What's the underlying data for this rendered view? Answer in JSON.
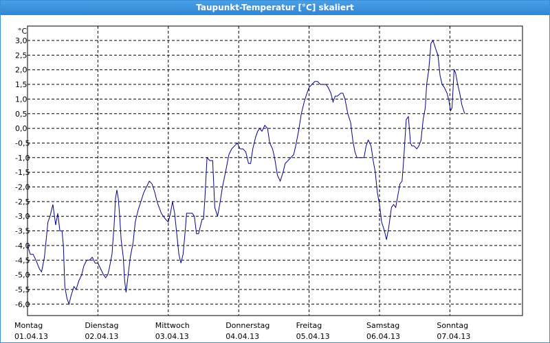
{
  "window": {
    "title": "Taupunkt-Temperatur [°C] skaliert"
  },
  "chart_data": {
    "type": "line",
    "title": "Taupunkt-Temperatur [°C] skaliert",
    "ylabel": "°C",
    "ylim": [
      -6.6,
      3.4
    ],
    "yticks": [
      "3,0",
      "2,5",
      "2,0",
      "1,5",
      "1,0",
      "0,5",
      "0,0",
      "-0,5",
      "-1,0",
      "-1,5",
      "-2,0",
      "-2,5",
      "-3,0",
      "-3,5",
      "-4,0",
      "-4,5",
      "-5,0",
      "-5,5",
      "-6,0"
    ],
    "ytick_values": [
      3.0,
      2.5,
      2.0,
      1.5,
      1.0,
      0.5,
      0.0,
      -0.5,
      -1.0,
      -1.5,
      -2.0,
      -2.5,
      -3.0,
      -3.5,
      -4.0,
      -4.5,
      -5.0,
      -5.5,
      -6.0
    ],
    "xlim": [
      0,
      7.0
    ],
    "xticks": [
      {
        "day": "Montag",
        "date": "01.04.13"
      },
      {
        "day": "Dienstag",
        "date": "02.04.13"
      },
      {
        "day": "Mittwoch",
        "date": "03.04.13"
      },
      {
        "day": "Donnerstag",
        "date": "04.04.13"
      },
      {
        "day": "Freitag",
        "date": "05.04.13"
      },
      {
        "day": "Samstag",
        "date": "06.04.13"
      },
      {
        "day": "Sonntag",
        "date": "07.04.13"
      }
    ],
    "grid": true,
    "series": [
      {
        "color": "#00008b",
        "points": [
          [
            0.0,
            -4.0
          ],
          [
            0.04,
            -4.3
          ],
          [
            0.08,
            -4.3
          ],
          [
            0.12,
            -4.5
          ],
          [
            0.17,
            -4.8
          ],
          [
            0.2,
            -4.9
          ],
          [
            0.24,
            -4.4
          ],
          [
            0.27,
            -3.7
          ],
          [
            0.29,
            -3.2
          ],
          [
            0.32,
            -3.0
          ],
          [
            0.36,
            -2.6
          ],
          [
            0.4,
            -3.3
          ],
          [
            0.43,
            -2.9
          ],
          [
            0.46,
            -3.5
          ],
          [
            0.49,
            -3.5
          ],
          [
            0.51,
            -4.0
          ],
          [
            0.53,
            -5.4
          ],
          [
            0.56,
            -5.8
          ],
          [
            0.59,
            -6.0
          ],
          [
            0.62,
            -5.7
          ],
          [
            0.66,
            -5.4
          ],
          [
            0.69,
            -5.5
          ],
          [
            0.73,
            -5.2
          ],
          [
            0.77,
            -5.0
          ],
          [
            0.8,
            -4.7
          ],
          [
            0.84,
            -4.5
          ],
          [
            0.88,
            -4.5
          ],
          [
            0.92,
            -4.4
          ],
          [
            0.96,
            -4.6
          ],
          [
            1.0,
            -4.6
          ],
          [
            1.04,
            -4.8
          ],
          [
            1.08,
            -5.0
          ],
          [
            1.11,
            -5.1
          ],
          [
            1.14,
            -5.0
          ],
          [
            1.16,
            -4.8
          ],
          [
            1.2,
            -4.3
          ],
          [
            1.23,
            -3.3
          ],
          [
            1.25,
            -2.4
          ],
          [
            1.27,
            -2.1
          ],
          [
            1.29,
            -2.4
          ],
          [
            1.31,
            -3.0
          ],
          [
            1.33,
            -3.8
          ],
          [
            1.36,
            -4.4
          ],
          [
            1.38,
            -5.2
          ],
          [
            1.4,
            -5.6
          ],
          [
            1.43,
            -5.0
          ],
          [
            1.46,
            -4.4
          ],
          [
            1.5,
            -3.9
          ],
          [
            1.53,
            -3.2
          ],
          [
            1.57,
            -2.8
          ],
          [
            1.61,
            -2.5
          ],
          [
            1.65,
            -2.2
          ],
          [
            1.69,
            -2.0
          ],
          [
            1.73,
            -1.8
          ],
          [
            1.77,
            -1.9
          ],
          [
            1.81,
            -2.2
          ],
          [
            1.84,
            -2.5
          ],
          [
            1.87,
            -2.7
          ],
          [
            1.9,
            -2.9
          ],
          [
            1.93,
            -3.0
          ],
          [
            1.96,
            -3.1
          ],
          [
            2.0,
            -3.2
          ],
          [
            2.03,
            -2.9
          ],
          [
            2.06,
            -2.5
          ],
          [
            2.09,
            -2.9
          ],
          [
            2.12,
            -3.6
          ],
          [
            2.15,
            -4.3
          ],
          [
            2.18,
            -4.6
          ],
          [
            2.21,
            -4.3
          ],
          [
            2.24,
            -3.5
          ],
          [
            2.26,
            -2.9
          ],
          [
            2.29,
            -2.9
          ],
          [
            2.34,
            -2.9
          ],
          [
            2.37,
            -3.0
          ],
          [
            2.4,
            -3.6
          ],
          [
            2.43,
            -3.6
          ],
          [
            2.46,
            -3.3
          ],
          [
            2.48,
            -3.1
          ],
          [
            2.5,
            -3.1
          ],
          [
            2.52,
            -2.4
          ],
          [
            2.55,
            -1.0
          ],
          [
            2.59,
            -1.1
          ],
          [
            2.63,
            -1.1
          ],
          [
            2.66,
            -2.7
          ],
          [
            2.7,
            -3.0
          ],
          [
            2.73,
            -2.6
          ],
          [
            2.77,
            -2.0
          ],
          [
            2.82,
            -1.4
          ],
          [
            2.86,
            -0.9
          ],
          [
            2.9,
            -0.7
          ],
          [
            2.94,
            -0.6
          ],
          [
            2.98,
            -0.5
          ],
          [
            3.02,
            -0.7
          ],
          [
            3.06,
            -0.7
          ],
          [
            3.1,
            -0.8
          ],
          [
            3.14,
            -1.2
          ],
          [
            3.17,
            -1.2
          ],
          [
            3.2,
            -0.7
          ],
          [
            3.24,
            -0.3
          ],
          [
            3.27,
            -0.1
          ],
          [
            3.3,
            0.0
          ],
          [
            3.33,
            -0.1
          ],
          [
            3.37,
            0.1
          ],
          [
            3.41,
            0.0
          ],
          [
            3.44,
            -0.5
          ],
          [
            3.48,
            -0.7
          ],
          [
            3.51,
            -1.0
          ],
          [
            3.55,
            -1.6
          ],
          [
            3.59,
            -1.8
          ],
          [
            3.63,
            -1.5
          ],
          [
            3.66,
            -1.2
          ],
          [
            3.7,
            -1.1
          ],
          [
            3.74,
            -1.0
          ],
          [
            3.78,
            -0.9
          ],
          [
            3.81,
            -0.6
          ],
          [
            3.85,
            -0.1
          ],
          [
            3.89,
            0.5
          ],
          [
            3.93,
            0.9
          ],
          [
            3.97,
            1.2
          ],
          [
            4.0,
            1.4
          ],
          [
            4.04,
            1.5
          ],
          [
            4.08,
            1.6
          ],
          [
            4.12,
            1.6
          ],
          [
            4.16,
            1.5
          ],
          [
            4.2,
            1.5
          ],
          [
            4.24,
            1.5
          ],
          [
            4.27,
            1.4
          ],
          [
            4.31,
            1.2
          ],
          [
            4.34,
            0.9
          ],
          [
            4.37,
            1.1
          ],
          [
            4.4,
            1.1
          ],
          [
            4.45,
            1.2
          ],
          [
            4.48,
            1.2
          ],
          [
            4.51,
            1.0
          ],
          [
            4.55,
            0.5
          ],
          [
            4.59,
            0.2
          ],
          [
            4.62,
            -0.4
          ],
          [
            4.65,
            -0.8
          ],
          [
            4.68,
            -1.0
          ],
          [
            4.71,
            -1.0
          ],
          [
            4.75,
            -1.0
          ],
          [
            4.78,
            -1.0
          ],
          [
            4.81,
            -0.6
          ],
          [
            4.84,
            -0.4
          ],
          [
            4.88,
            -0.6
          ],
          [
            4.91,
            -1.1
          ],
          [
            4.94,
            -1.5
          ],
          [
            4.97,
            -2.2
          ],
          [
            5.0,
            -2.6
          ],
          [
            5.03,
            -3.2
          ],
          [
            5.07,
            -3.5
          ],
          [
            5.1,
            -3.8
          ],
          [
            5.13,
            -3.4
          ],
          [
            5.17,
            -2.7
          ],
          [
            5.2,
            -2.6
          ],
          [
            5.23,
            -2.7
          ],
          [
            5.26,
            -2.3
          ],
          [
            5.29,
            -1.9
          ],
          [
            5.32,
            -1.8
          ],
          [
            5.34,
            -1.2
          ],
          [
            5.38,
            0.3
          ],
          [
            5.41,
            0.4
          ],
          [
            5.44,
            -0.5
          ],
          [
            5.46,
            -0.6
          ],
          [
            5.49,
            -0.6
          ],
          [
            5.53,
            -0.7
          ],
          [
            5.56,
            -0.6
          ],
          [
            5.59,
            -0.4
          ],
          [
            5.62,
            0.3
          ],
          [
            5.65,
            0.7
          ],
          [
            5.67,
            1.5
          ],
          [
            5.7,
            2.0
          ],
          [
            5.73,
            2.9
          ],
          [
            5.76,
            3.0
          ],
          [
            5.8,
            2.7
          ],
          [
            5.83,
            2.5
          ],
          [
            5.86,
            1.8
          ],
          [
            5.89,
            1.5
          ],
          [
            5.92,
            1.4
          ],
          [
            5.96,
            1.2
          ],
          [
            5.99,
            0.9
          ],
          [
            6.01,
            0.6
          ],
          [
            6.03,
            0.7
          ],
          [
            6.06,
            2.0
          ],
          [
            6.08,
            1.9
          ],
          [
            6.11,
            1.5
          ],
          [
            6.14,
            1.2
          ],
          [
            6.17,
            0.8
          ],
          [
            6.21,
            0.5
          ]
        ]
      }
    ]
  }
}
